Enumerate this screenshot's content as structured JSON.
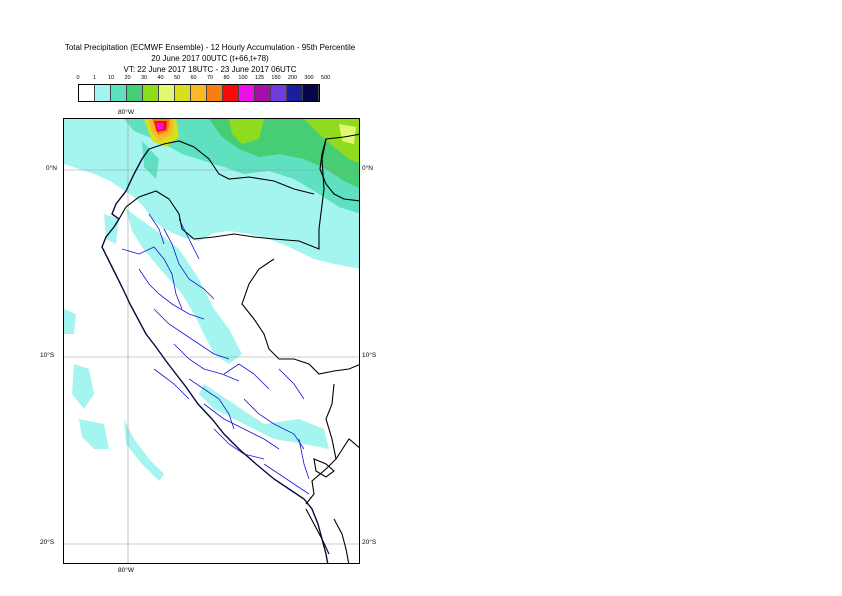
{
  "title": {
    "line1": "Total Precipitation (ECMWF Ensemble) - 12 Hourly Accumulation - 95th Percentile",
    "line2": "20 June 2017 00UTC (t+66,t+78)",
    "line3": "VT: 22 June 2017 18UTC - 23 June 2017 06UTC"
  },
  "legend": {
    "thresholds": [
      "0",
      "1",
      "10",
      "20",
      "30",
      "40",
      "50",
      "60",
      "70",
      "80",
      "100",
      "125",
      "150",
      "200",
      "300",
      "500"
    ],
    "colors": [
      "#ffffff",
      "#a4f5f0",
      "#5fe0c0",
      "#47cd73",
      "#8fdc1e",
      "#e3f872",
      "#d8df1c",
      "#f9b72c",
      "#f67f12",
      "#fa0a0a",
      "#ed0eec",
      "#a60ea9",
      "#6e3dde",
      "#1a1f9c",
      "#06064b"
    ]
  },
  "map": {
    "lat_labels_left": [
      "0°N",
      "10°S",
      "20°S"
    ],
    "lat_labels_right": [
      "0°N",
      "10°S",
      "20°S"
    ],
    "lon_label_top": "80°W",
    "lon_label_bottom": "80°W",
    "colors": {
      "coast": "#0a0a3c",
      "internal_borders": "#1515d8",
      "country_borders": "#000000",
      "gridlines": "#9a9a9a"
    }
  }
}
